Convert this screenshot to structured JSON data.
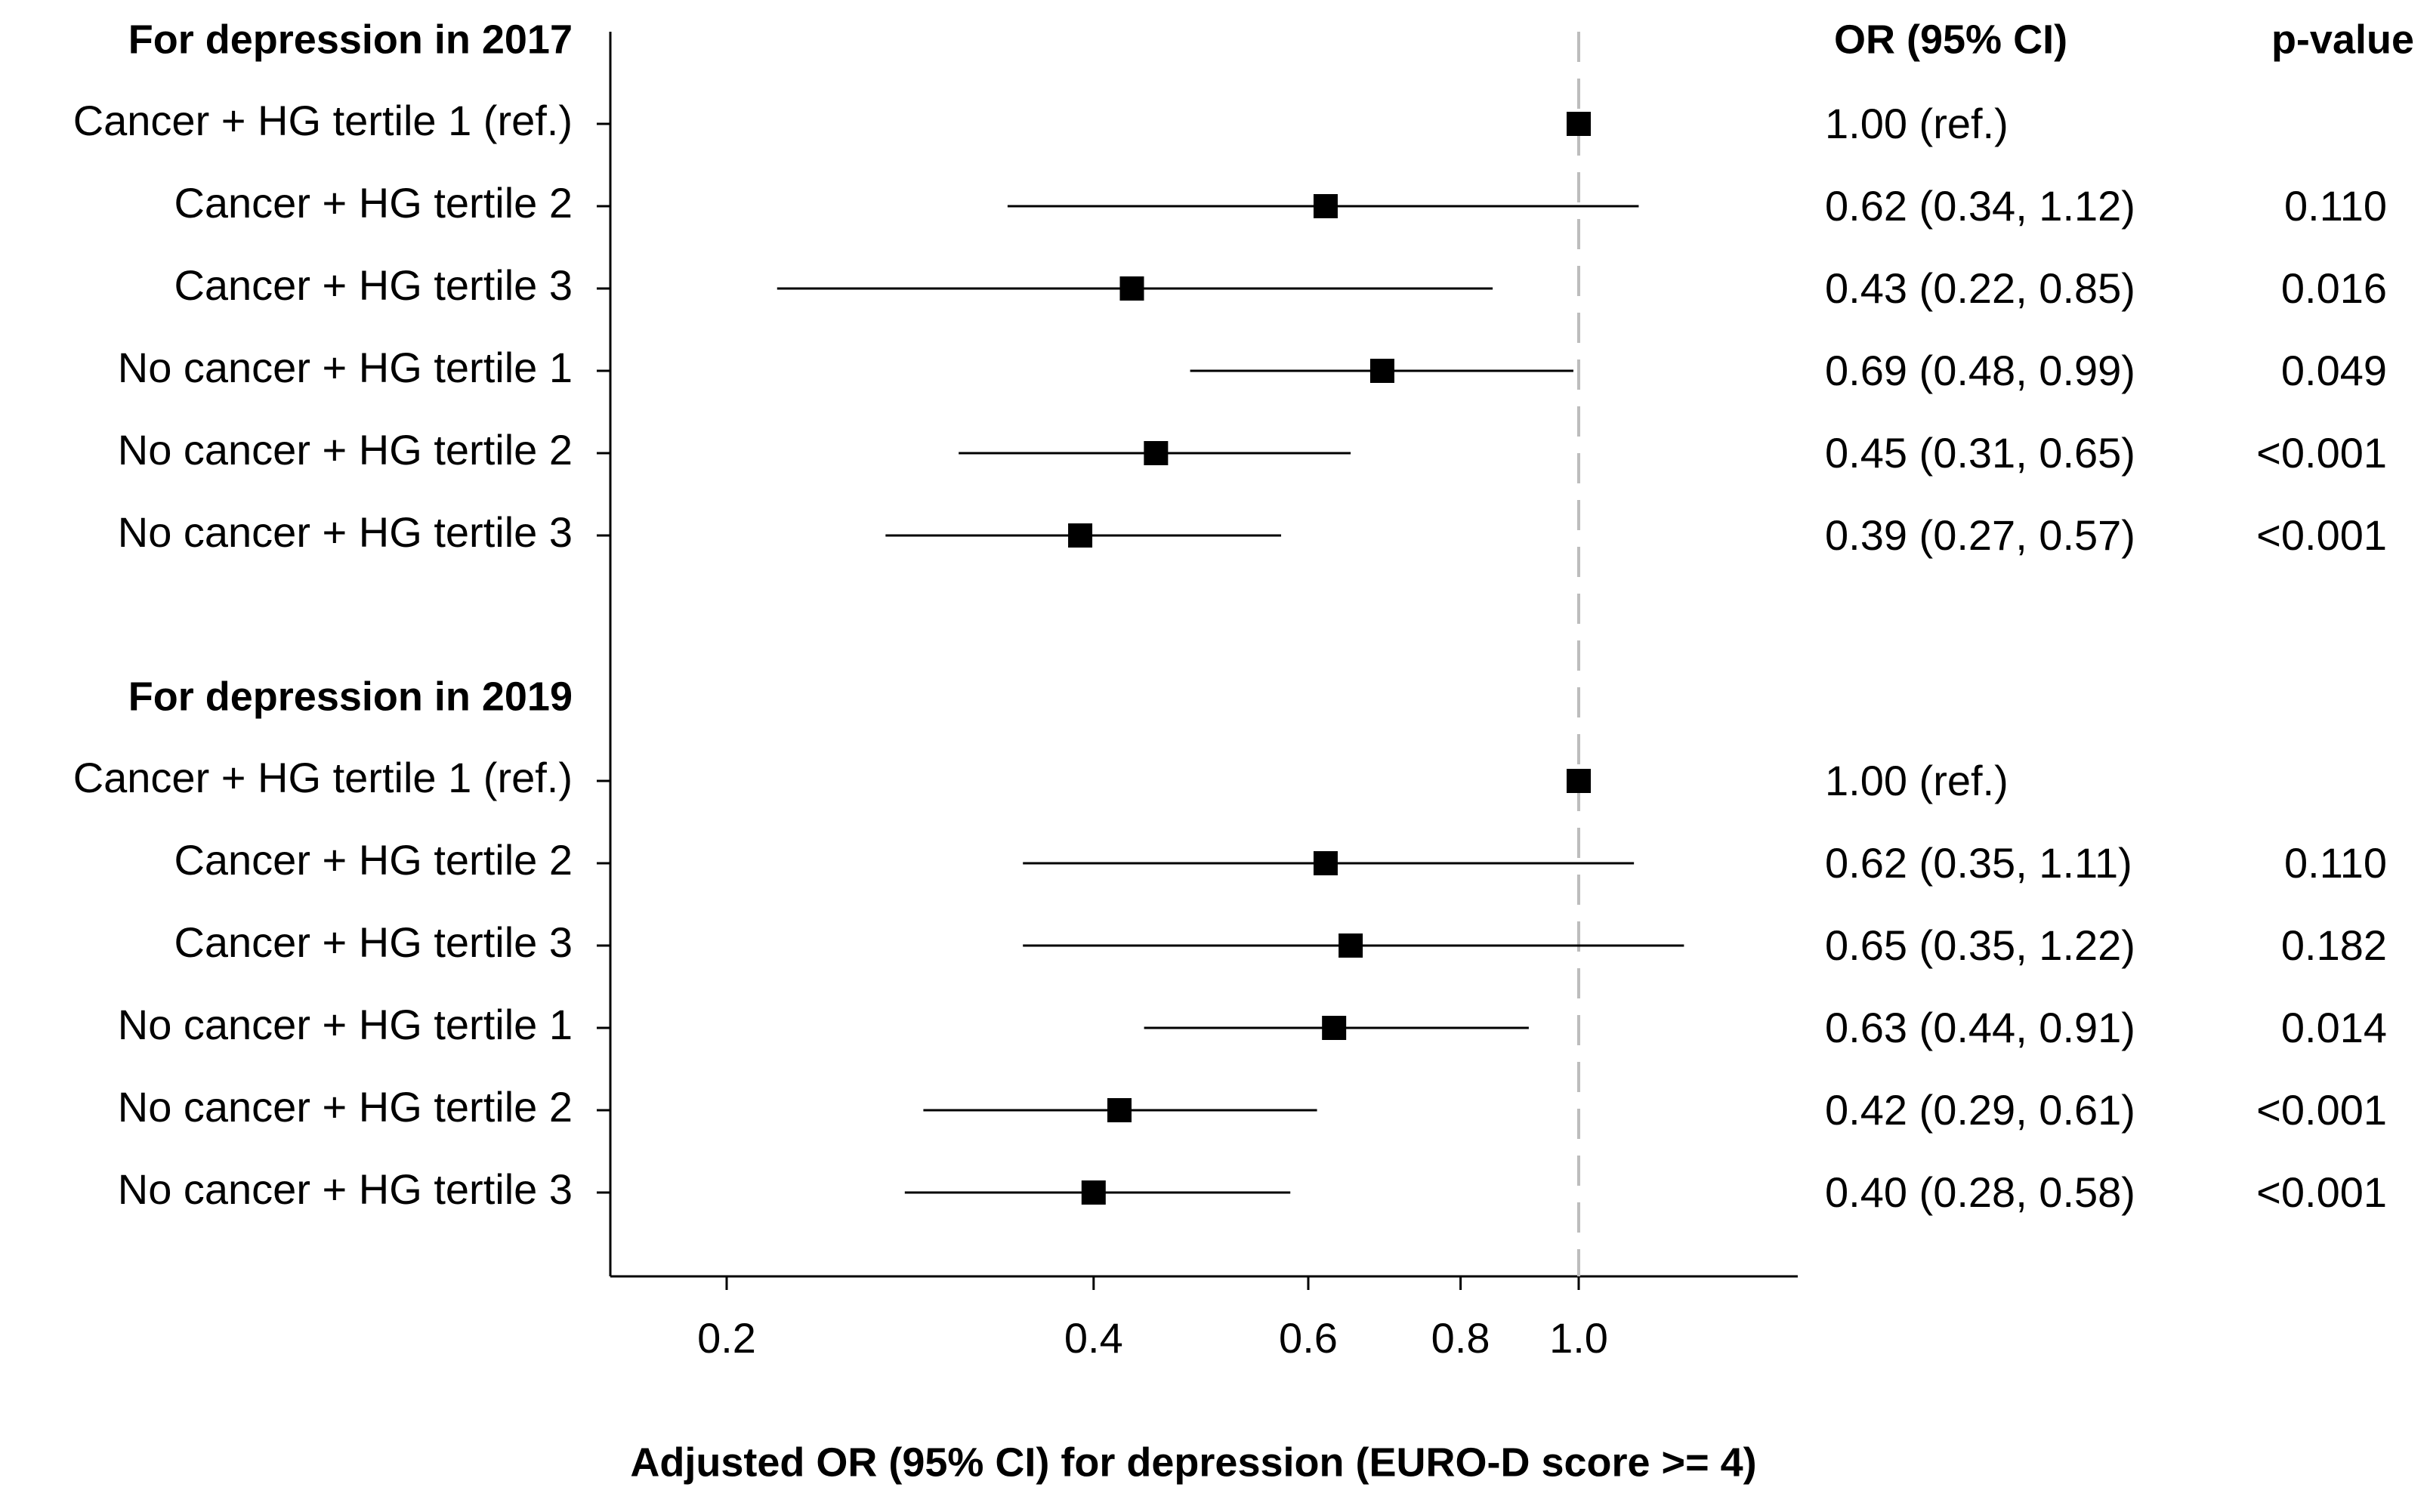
{
  "chart_data": {
    "type": "forest",
    "xlabel": "Adjusted OR (95% CI) for depression (EURO-D score >= 4)",
    "x_scale": "log",
    "xlim": [
      0.16,
      1.4
    ],
    "x_ticks": [
      0.2,
      0.4,
      0.6,
      0.8,
      1.0
    ],
    "x_tick_labels": [
      "0.2",
      "0.4",
      "0.6",
      "0.8",
      "1.0"
    ],
    "reference_line": 1.0,
    "columns": {
      "or_header": "OR (95% CI)",
      "p_header": "p-value"
    },
    "groups": [
      {
        "title": "For depression in 2017",
        "rows": [
          {
            "label": "Cancer + HG tertile 1 (ref.)",
            "or": 1.0,
            "lo": null,
            "hi": null,
            "or_text": "1.00 (ref.)",
            "p": ""
          },
          {
            "label": "Cancer + HG tertile 2",
            "or": 0.62,
            "lo": 0.34,
            "hi": 1.12,
            "or_text": "0.62 (0.34, 1.12)",
            "p": "0.110"
          },
          {
            "label": "Cancer + HG tertile 3",
            "or": 0.43,
            "lo": 0.22,
            "hi": 0.85,
            "or_text": "0.43 (0.22, 0.85)",
            "p": "0.016"
          },
          {
            "label": "No cancer + HG tertile 1",
            "or": 0.69,
            "lo": 0.48,
            "hi": 0.99,
            "or_text": "0.69 (0.48, 0.99)",
            "p": "0.049"
          },
          {
            "label": "No cancer + HG tertile 2",
            "or": 0.45,
            "lo": 0.31,
            "hi": 0.65,
            "or_text": "0.45 (0.31, 0.65)",
            "p": "<0.001"
          },
          {
            "label": "No cancer + HG tertile 3",
            "or": 0.39,
            "lo": 0.27,
            "hi": 0.57,
            "or_text": "0.39 (0.27, 0.57)",
            "p": "<0.001"
          }
        ]
      },
      {
        "title": "For depression in 2019",
        "rows": [
          {
            "label": "Cancer + HG tertile 1 (ref.)",
            "or": 1.0,
            "lo": null,
            "hi": null,
            "or_text": "1.00 (ref.)",
            "p": ""
          },
          {
            "label": "Cancer + HG tertile 2",
            "or": 0.62,
            "lo": 0.35,
            "hi": 1.11,
            "or_text": "0.62 (0.35, 1.11)",
            "p": "0.110"
          },
          {
            "label": "Cancer + HG tertile 3",
            "or": 0.65,
            "lo": 0.35,
            "hi": 1.22,
            "or_text": "0.65 (0.35, 1.22)",
            "p": "0.182"
          },
          {
            "label": "No cancer + HG tertile 1",
            "or": 0.63,
            "lo": 0.44,
            "hi": 0.91,
            "or_text": "0.63 (0.44, 0.91)",
            "p": "0.014"
          },
          {
            "label": "No cancer + HG tertile 2",
            "or": 0.42,
            "lo": 0.29,
            "hi": 0.61,
            "or_text": "0.42 (0.29, 0.61)",
            "p": "<0.001"
          },
          {
            "label": "No cancer + HG tertile 3",
            "or": 0.4,
            "lo": 0.28,
            "hi": 0.58,
            "or_text": "0.40 (0.28, 0.58)",
            "p": "<0.001"
          }
        ]
      }
    ]
  }
}
